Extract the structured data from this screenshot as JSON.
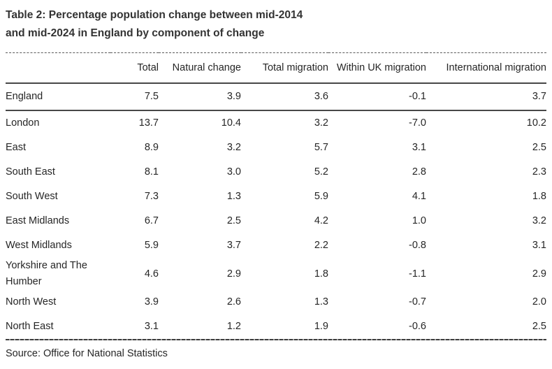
{
  "title": {
    "line1": "Table 2: Percentage population change between mid-2014",
    "line2": "and mid-2024 in England by component of change"
  },
  "table": {
    "columns": [
      "",
      "Total",
      "Natural change",
      "Total migration",
      "Within UK migration",
      "International migration"
    ],
    "rows": [
      {
        "region": "England",
        "values": [
          "7.5",
          "3.9",
          "3.6",
          "-0.1",
          "3.7"
        ]
      },
      {
        "region": "London",
        "values": [
          "13.7",
          "10.4",
          "3.2",
          "-7.0",
          "10.2"
        ]
      },
      {
        "region": "East",
        "values": [
          "8.9",
          "3.2",
          "5.7",
          "3.1",
          "2.5"
        ]
      },
      {
        "region": "South East",
        "values": [
          "8.1",
          "3.0",
          "5.2",
          "2.8",
          "2.3"
        ]
      },
      {
        "region": "South West",
        "values": [
          "7.3",
          "1.3",
          "5.9",
          "4.1",
          "1.8"
        ]
      },
      {
        "region": "East Midlands",
        "values": [
          "6.7",
          "2.5",
          "4.2",
          "1.0",
          "3.2"
        ]
      },
      {
        "region": "West Midlands",
        "values": [
          "5.9",
          "3.7",
          "2.2",
          "-0.8",
          "3.1"
        ]
      },
      {
        "region": "Yorkshire and The Humber",
        "values": [
          "4.6",
          "2.9",
          "1.8",
          "-1.1",
          "2.9"
        ]
      },
      {
        "region": "North West",
        "values": [
          "3.9",
          "2.6",
          "1.3",
          "-0.7",
          "2.0"
        ]
      },
      {
        "region": "North East",
        "values": [
          "3.1",
          "1.2",
          "1.9",
          "-0.6",
          "2.5"
        ]
      }
    ]
  },
  "source": "Source: Office for National Statistics",
  "colors": {
    "title_text": "#333333",
    "body_text": "#262626",
    "rule_solid": "#474747",
    "rule_dashed": "#5a5a5a",
    "background": "#ffffff"
  }
}
